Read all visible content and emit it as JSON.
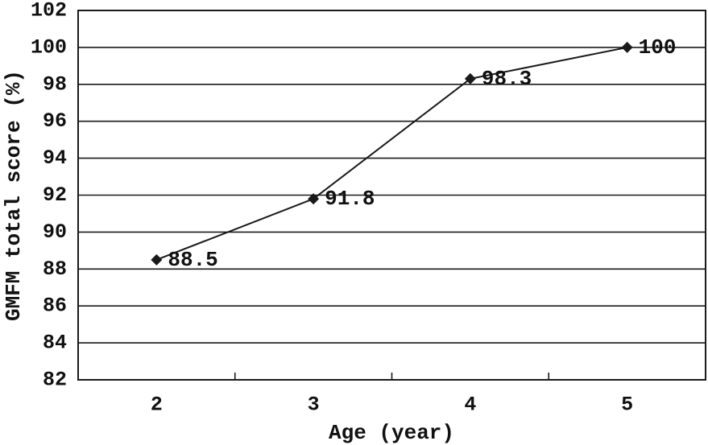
{
  "chart_data": {
    "type": "line",
    "title": "",
    "xlabel": "Age (year)",
    "ylabel": "GMFM total score (%)",
    "categories": [
      "2",
      "3",
      "4",
      "5"
    ],
    "series": [
      {
        "name": "GMFM total score",
        "values": [
          88.5,
          91.8,
          98.3,
          100
        ],
        "point_labels": [
          "88.5",
          "91.8",
          "98.3",
          "100"
        ],
        "line_color": "#1a1a1a",
        "marker": "diamond",
        "marker_color": "#1a1a1a"
      }
    ],
    "ylim": [
      82,
      102
    ],
    "ytick_step": 2,
    "grid": "horizontal",
    "gridline_color": "#1a1a1a",
    "axis_color": "#1a1a1a",
    "legend": "none",
    "plot_background": "#ffffff"
  }
}
